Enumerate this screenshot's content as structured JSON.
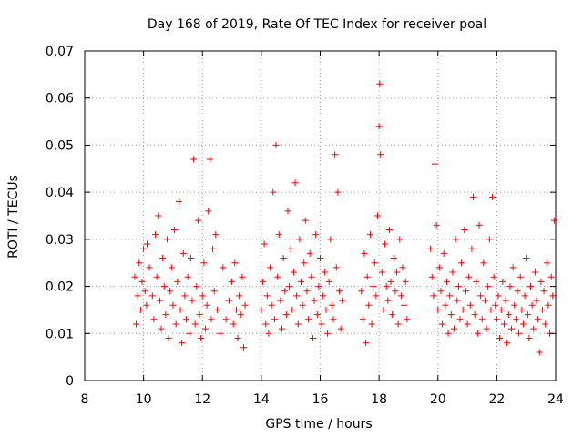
{
  "chart_data": {
    "type": "scatter",
    "title": "Day 168 of 2019, Rate Of TEC Index for receiver poal",
    "xlabel": "GPS time / hours",
    "ylabel": "ROTI / TECUs",
    "xlim": [
      8,
      24
    ],
    "ylim": [
      0,
      0.07
    ],
    "xticks": [
      8,
      10,
      12,
      14,
      16,
      18,
      20,
      22,
      24
    ],
    "xtick_labels": [
      "8",
      "10",
      "12",
      "14",
      "16",
      "18",
      "20",
      "22",
      "24"
    ],
    "yticks": [
      0,
      0.01,
      0.02,
      0.03,
      0.04,
      0.05,
      0.06,
      0.07
    ],
    "ytick_labels": [
      "0",
      "0.01",
      "0.02",
      "0.03",
      "0.04",
      "0.05",
      "0.06",
      "0.07"
    ],
    "grid": true,
    "marker": "plus",
    "color": "#ff0000",
    "series": [
      {
        "name": "ROTI",
        "points": [
          [
            9.7,
            0.022
          ],
          [
            9.75,
            0.012
          ],
          [
            9.8,
            0.018
          ],
          [
            9.85,
            0.025
          ],
          [
            9.9,
            0.015
          ],
          [
            9.95,
            0.021
          ],
          [
            10.0,
            0.028
          ],
          [
            10.05,
            0.019
          ],
          [
            10.1,
            0.016
          ],
          [
            10.12,
            0.029
          ],
          [
            10.2,
            0.024
          ],
          [
            10.3,
            0.018
          ],
          [
            10.35,
            0.013
          ],
          [
            10.4,
            0.031
          ],
          [
            10.45,
            0.022
          ],
          [
            10.5,
            0.035
          ],
          [
            10.55,
            0.017
          ],
          [
            10.6,
            0.011
          ],
          [
            10.65,
            0.026
          ],
          [
            10.7,
            0.02
          ],
          [
            10.75,
            0.014
          ],
          [
            10.8,
            0.03
          ],
          [
            10.85,
            0.009
          ],
          [
            10.9,
            0.019
          ],
          [
            10.95,
            0.024
          ],
          [
            11.0,
            0.016
          ],
          [
            11.05,
            0.032
          ],
          [
            11.1,
            0.012
          ],
          [
            11.15,
            0.021
          ],
          [
            11.2,
            0.038
          ],
          [
            11.25,
            0.015
          ],
          [
            11.3,
            0.008
          ],
          [
            11.35,
            0.027
          ],
          [
            11.4,
            0.018
          ],
          [
            11.45,
            0.013
          ],
          [
            11.5,
            0.022
          ],
          [
            11.55,
            0.01
          ],
          [
            11.6,
            0.026
          ],
          [
            11.65,
            0.017
          ],
          [
            11.7,
            0.047
          ],
          [
            11.75,
            0.012
          ],
          [
            11.8,
            0.02
          ],
          [
            11.85,
            0.034
          ],
          [
            11.9,
            0.014
          ],
          [
            11.95,
            0.009
          ],
          [
            12.0,
            0.018
          ],
          [
            12.05,
            0.025
          ],
          [
            12.1,
            0.011
          ],
          [
            12.15,
            0.016
          ],
          [
            12.2,
            0.036
          ],
          [
            12.25,
            0.047
          ],
          [
            12.3,
            0.013
          ],
          [
            12.35,
            0.028
          ],
          [
            12.4,
            0.019
          ],
          [
            12.45,
            0.031
          ],
          [
            12.5,
            0.015
          ],
          [
            12.6,
            0.01
          ],
          [
            12.7,
            0.024
          ],
          [
            12.8,
            0.013
          ],
          [
            12.9,
            0.017
          ],
          [
            13.0,
            0.021
          ],
          [
            13.05,
            0.012
          ],
          [
            13.1,
            0.025
          ],
          [
            13.15,
            0.015
          ],
          [
            13.2,
            0.009
          ],
          [
            13.25,
            0.018
          ],
          [
            13.3,
            0.014
          ],
          [
            13.35,
            0.022
          ],
          [
            13.4,
            0.007
          ],
          [
            13.45,
            0.016
          ],
          [
            14.0,
            0.015
          ],
          [
            14.05,
            0.021
          ],
          [
            14.1,
            0.029
          ],
          [
            14.15,
            0.012
          ],
          [
            14.2,
            0.018
          ],
          [
            14.25,
            0.01
          ],
          [
            14.3,
            0.024
          ],
          [
            14.35,
            0.016
          ],
          [
            14.4,
            0.04
          ],
          [
            14.45,
            0.013
          ],
          [
            14.5,
            0.05
          ],
          [
            14.55,
            0.022
          ],
          [
            14.6,
            0.031
          ],
          [
            14.65,
            0.017
          ],
          [
            14.7,
            0.011
          ],
          [
            14.75,
            0.026
          ],
          [
            14.8,
            0.019
          ],
          [
            14.85,
            0.014
          ],
          [
            14.9,
            0.036
          ],
          [
            14.95,
            0.02
          ],
          [
            15.0,
            0.028
          ],
          [
            15.05,
            0.015
          ],
          [
            15.1,
            0.023
          ],
          [
            15.15,
            0.042
          ],
          [
            15.2,
            0.018
          ],
          [
            15.25,
            0.012
          ],
          [
            15.3,
            0.03
          ],
          [
            15.35,
            0.021
          ],
          [
            15.4,
            0.016
          ],
          [
            15.45,
            0.025
          ],
          [
            15.5,
            0.034
          ],
          [
            15.55,
            0.019
          ],
          [
            15.6,
            0.013
          ],
          [
            15.65,
            0.027
          ],
          [
            15.7,
            0.022
          ],
          [
            15.75,
            0.009
          ],
          [
            15.8,
            0.017
          ],
          [
            15.85,
            0.031
          ],
          [
            15.9,
            0.014
          ],
          [
            15.95,
            0.02
          ],
          [
            16.0,
            0.026
          ],
          [
            16.05,
            0.012
          ],
          [
            16.1,
            0.018
          ],
          [
            16.15,
            0.023
          ],
          [
            16.2,
            0.015
          ],
          [
            16.25,
            0.01
          ],
          [
            16.3,
            0.021
          ],
          [
            16.35,
            0.03
          ],
          [
            16.4,
            0.016
          ],
          [
            16.45,
            0.013
          ],
          [
            16.5,
            0.048
          ],
          [
            16.55,
            0.024
          ],
          [
            16.6,
            0.04
          ],
          [
            16.65,
            0.019
          ],
          [
            16.7,
            0.011
          ],
          [
            16.75,
            0.017
          ],
          [
            17.4,
            0.019
          ],
          [
            17.45,
            0.013
          ],
          [
            17.5,
            0.027
          ],
          [
            17.55,
            0.008
          ],
          [
            17.6,
            0.022
          ],
          [
            17.65,
            0.016
          ],
          [
            17.7,
            0.031
          ],
          [
            17.75,
            0.012
          ],
          [
            17.8,
            0.02
          ],
          [
            17.85,
            0.025
          ],
          [
            17.9,
            0.018
          ],
          [
            17.95,
            0.035
          ],
          [
            18.0,
            0.054
          ],
          [
            18.02,
            0.063
          ],
          [
            18.05,
            0.048
          ],
          [
            18.1,
            0.023
          ],
          [
            18.15,
            0.015
          ],
          [
            18.2,
            0.029
          ],
          [
            18.25,
            0.02
          ],
          [
            18.3,
            0.017
          ],
          [
            18.35,
            0.032
          ],
          [
            18.4,
            0.021
          ],
          [
            18.45,
            0.014
          ],
          [
            18.5,
            0.026
          ],
          [
            18.55,
            0.019
          ],
          [
            18.6,
            0.023
          ],
          [
            18.65,
            0.012
          ],
          [
            18.7,
            0.03
          ],
          [
            18.75,
            0.018
          ],
          [
            18.8,
            0.024
          ],
          [
            18.85,
            0.016
          ],
          [
            18.9,
            0.021
          ],
          [
            18.95,
            0.013
          ],
          [
            19.75,
            0.028
          ],
          [
            19.8,
            0.022
          ],
          [
            19.85,
            0.018
          ],
          [
            19.9,
            0.046
          ],
          [
            19.95,
            0.033
          ],
          [
            20.0,
            0.015
          ],
          [
            20.05,
            0.024
          ],
          [
            20.1,
            0.019
          ],
          [
            20.15,
            0.012
          ],
          [
            20.2,
            0.027
          ],
          [
            20.25,
            0.016
          ],
          [
            20.3,
            0.021
          ],
          [
            20.35,
            0.01
          ],
          [
            20.4,
            0.018
          ],
          [
            20.45,
            0.014
          ],
          [
            20.5,
            0.023
          ],
          [
            20.55,
            0.011
          ],
          [
            20.6,
            0.03
          ],
          [
            20.65,
            0.017
          ],
          [
            20.7,
            0.02
          ],
          [
            20.75,
            0.013
          ],
          [
            20.8,
            0.025
          ],
          [
            20.85,
            0.015
          ],
          [
            20.9,
            0.032
          ],
          [
            20.95,
            0.019
          ],
          [
            21.0,
            0.012
          ],
          [
            21.05,
            0.022
          ],
          [
            21.1,
            0.016
          ],
          [
            21.15,
            0.028
          ],
          [
            21.2,
            0.039
          ],
          [
            21.25,
            0.014
          ],
          [
            21.3,
            0.021
          ],
          [
            21.35,
            0.01
          ],
          [
            21.4,
            0.033
          ],
          [
            21.45,
            0.018
          ],
          [
            21.5,
            0.013
          ],
          [
            21.55,
            0.025
          ],
          [
            21.6,
            0.017
          ],
          [
            21.65,
            0.011
          ],
          [
            21.7,
            0.02
          ],
          [
            21.75,
            0.03
          ],
          [
            21.8,
            0.015
          ],
          [
            21.85,
            0.039
          ],
          [
            21.9,
            0.022
          ],
          [
            21.95,
            0.016
          ],
          [
            22.0,
            0.013
          ],
          [
            22.05,
            0.018
          ],
          [
            22.1,
            0.009
          ],
          [
            22.15,
            0.015
          ],
          [
            22.2,
            0.021
          ],
          [
            22.25,
            0.012
          ],
          [
            22.3,
            0.017
          ],
          [
            22.35,
            0.008
          ],
          [
            22.4,
            0.014
          ],
          [
            22.45,
            0.02
          ],
          [
            22.5,
            0.011
          ],
          [
            22.55,
            0.024
          ],
          [
            22.6,
            0.016
          ],
          [
            22.65,
            0.013
          ],
          [
            22.7,
            0.019
          ],
          [
            22.75,
            0.01
          ],
          [
            22.8,
            0.022
          ],
          [
            22.85,
            0.015
          ],
          [
            22.9,
            0.012
          ],
          [
            22.95,
            0.018
          ],
          [
            23.0,
            0.026
          ],
          [
            23.05,
            0.014
          ],
          [
            23.1,
            0.009
          ],
          [
            23.15,
            0.02
          ],
          [
            23.2,
            0.016
          ],
          [
            23.25,
            0.011
          ],
          [
            23.3,
            0.023
          ],
          [
            23.35,
            0.017
          ],
          [
            23.4,
            0.013
          ],
          [
            23.45,
            0.006
          ],
          [
            23.5,
            0.021
          ],
          [
            23.55,
            0.015
          ],
          [
            23.6,
            0.019
          ],
          [
            23.65,
            0.012
          ],
          [
            23.7,
            0.025
          ],
          [
            23.75,
            0.016
          ],
          [
            23.8,
            0.01
          ],
          [
            23.85,
            0.022
          ],
          [
            23.9,
            0.018
          ],
          [
            23.95,
            0.034
          ]
        ]
      }
    ]
  }
}
